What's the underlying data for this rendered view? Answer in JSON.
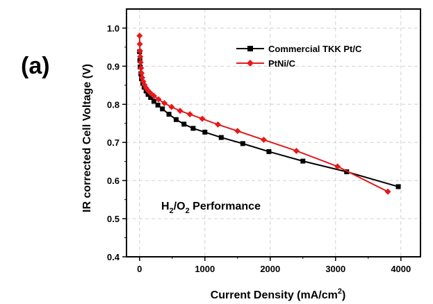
{
  "panel_label": "(a)",
  "chart_data": {
    "type": "line",
    "xlabel": "Current Density (mA/cm",
    "xlabel_sup": "2",
    "xlabel_end": ")",
    "ylabel": "IR corrected Cell Voltage (V)",
    "xlim": [
      -200,
      4300
    ],
    "ylim": [
      0.4,
      1.05
    ],
    "x_ticks": [
      0,
      1000,
      2000,
      3000,
      4000
    ],
    "y_ticks": [
      0.4,
      0.5,
      0.6,
      0.7,
      0.8,
      0.9,
      1.0
    ],
    "x_tick_labels": [
      "0",
      "1000",
      "2000",
      "3000",
      "4000"
    ],
    "y_tick_labels": [
      "0.4",
      "0.5",
      "0.6",
      "0.7",
      "0.8",
      "0.9",
      "1.0"
    ],
    "grid": true,
    "legend_position": "top-right",
    "annotation": {
      "parts": [
        "H",
        "2",
        "/O",
        "2",
        " Performance"
      ]
    },
    "series": [
      {
        "name": "Commercial TKK Pt/C",
        "color": "#000000",
        "marker": "square",
        "x": [
          0,
          5,
          10,
          20,
          30,
          50,
          70,
          100,
          130,
          170,
          220,
          280,
          350,
          450,
          560,
          680,
          820,
          1000,
          1250,
          1580,
          1980,
          2500,
          3170,
          3960
        ],
        "y": [
          0.938,
          0.915,
          0.898,
          0.88,
          0.867,
          0.855,
          0.845,
          0.835,
          0.826,
          0.818,
          0.808,
          0.798,
          0.788,
          0.774,
          0.76,
          0.748,
          0.737,
          0.727,
          0.713,
          0.697,
          0.676,
          0.651,
          0.623,
          0.584
        ]
      },
      {
        "name": "PtNi/C",
        "color": "#e41a1c",
        "marker": "diamond",
        "x": [
          0,
          3,
          6,
          10,
          15,
          22,
          30,
          40,
          55,
          75,
          100,
          130,
          170,
          220,
          290,
          380,
          490,
          620,
          770,
          960,
          1200,
          1500,
          1900,
          2400,
          3030,
          3800
        ],
        "y": [
          0.98,
          0.958,
          0.94,
          0.925,
          0.91,
          0.895,
          0.882,
          0.87,
          0.86,
          0.851,
          0.843,
          0.836,
          0.829,
          0.822,
          0.813,
          0.803,
          0.793,
          0.783,
          0.774,
          0.762,
          0.747,
          0.73,
          0.707,
          0.678,
          0.637,
          0.571
        ]
      }
    ]
  }
}
